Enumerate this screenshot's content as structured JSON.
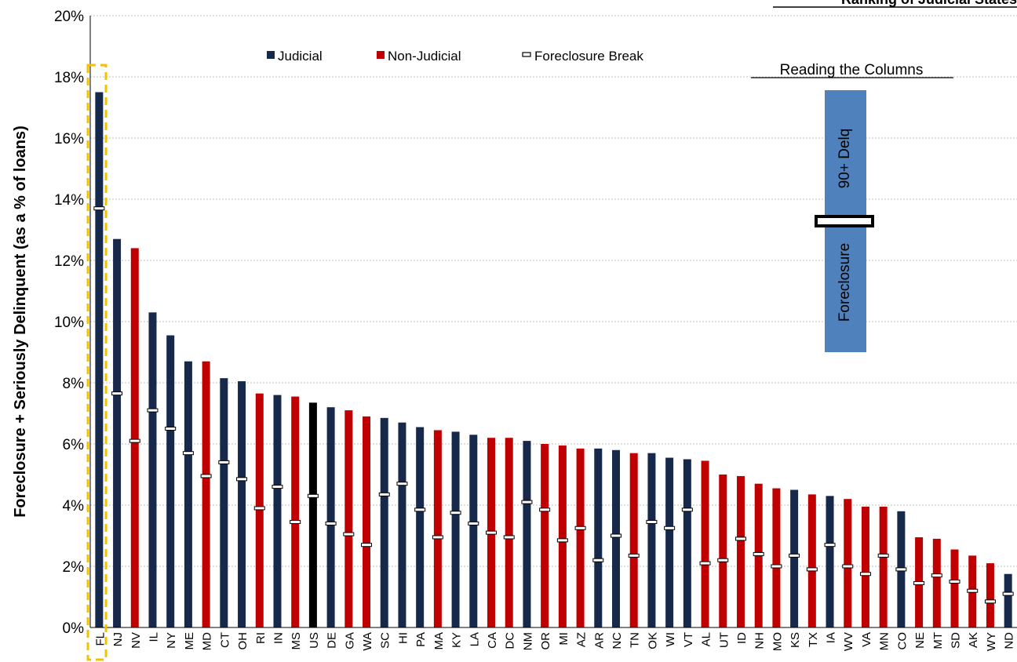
{
  "colors": {
    "judicial": "#17294a",
    "non_judicial": "#c00000",
    "us": "#000000",
    "guide_box": "#4f81bd",
    "highlight": "#f5c000",
    "gridline": "#bfbfbf"
  },
  "header_text": "Ranking of Judicial States",
  "legend": {
    "position": "top-center",
    "items": [
      {
        "label": "Judicial",
        "color": "#17294a",
        "kind": "square"
      },
      {
        "label": "Non-Judicial",
        "color": "#c00000",
        "kind": "square"
      },
      {
        "label": "Foreclosure Break",
        "color": "#ffffff",
        "kind": "break"
      }
    ]
  },
  "reading_guide": {
    "title": "Reading the Columns",
    "upper_label": "90+ Delq",
    "lower_label": "Foreclosure"
  },
  "highlighted_category": "FL",
  "chart_data": {
    "type": "bar",
    "ylabel": "Foreclosure + Seriously Delinquent (as a % of loans)",
    "xlabel": "",
    "ylim": [
      0,
      20
    ],
    "yticks": [
      "0%",
      "2%",
      "4%",
      "6%",
      "8%",
      "10%",
      "12%",
      "14%",
      "16%",
      "18%",
      "20%"
    ],
    "grid": true,
    "categories": [
      "FL",
      "NJ",
      "NV",
      "IL",
      "NY",
      "ME",
      "MD",
      "CT",
      "OH",
      "RI",
      "IN",
      "MS",
      "US",
      "DE",
      "GA",
      "WA",
      "SC",
      "HI",
      "PA",
      "MA",
      "KY",
      "LA",
      "CA",
      "DC",
      "NM",
      "OR",
      "MI",
      "AZ",
      "AR",
      "NC",
      "TN",
      "OK",
      "WI",
      "VT",
      "AL",
      "UT",
      "ID",
      "NH",
      "MO",
      "KS",
      "TX",
      "IA",
      "WV",
      "VA",
      "MN",
      "CO",
      "NE",
      "MT",
      "SD",
      "AK",
      "WY",
      "ND"
    ],
    "types": [
      "J",
      "J",
      "N",
      "J",
      "J",
      "J",
      "N",
      "J",
      "J",
      "N",
      "J",
      "N",
      "US",
      "J",
      "N",
      "N",
      "J",
      "J",
      "J",
      "N",
      "J",
      "J",
      "N",
      "N",
      "J",
      "N",
      "N",
      "N",
      "J",
      "J",
      "N",
      "J",
      "J",
      "J",
      "N",
      "N",
      "N",
      "N",
      "N",
      "J",
      "N",
      "J",
      "N",
      "N",
      "N",
      "J",
      "N",
      "N",
      "N",
      "N",
      "N",
      "J"
    ],
    "values": [
      17.5,
      12.7,
      12.4,
      10.3,
      9.55,
      8.7,
      8.7,
      8.15,
      8.05,
      7.65,
      7.6,
      7.55,
      7.35,
      7.2,
      7.1,
      6.9,
      6.85,
      6.7,
      6.55,
      6.45,
      6.4,
      6.3,
      6.2,
      6.2,
      6.1,
      6.0,
      5.95,
      5.85,
      5.85,
      5.8,
      5.7,
      5.7,
      5.55,
      5.5,
      5.45,
      5.0,
      4.95,
      4.7,
      4.55,
      4.5,
      4.35,
      4.3,
      4.2,
      3.95,
      3.95,
      3.8,
      2.95,
      2.9,
      2.55,
      2.35,
      2.1,
      1.75
    ],
    "foreclosure_break": [
      13.7,
      7.65,
      6.1,
      7.1,
      6.5,
      5.7,
      4.95,
      5.4,
      4.85,
      3.9,
      4.6,
      3.45,
      4.3,
      3.4,
      3.05,
      2.7,
      4.35,
      4.7,
      3.85,
      2.95,
      3.75,
      3.4,
      3.1,
      2.95,
      4.1,
      3.85,
      2.85,
      3.25,
      2.2,
      3.0,
      2.35,
      3.45,
      3.25,
      3.85,
      2.1,
      2.2,
      2.9,
      2.4,
      2.0,
      2.35,
      1.9,
      2.7,
      2.0,
      1.75,
      2.35,
      1.9,
      1.45,
      1.7,
      1.5,
      1.2,
      0.85,
      1.1
    ]
  }
}
